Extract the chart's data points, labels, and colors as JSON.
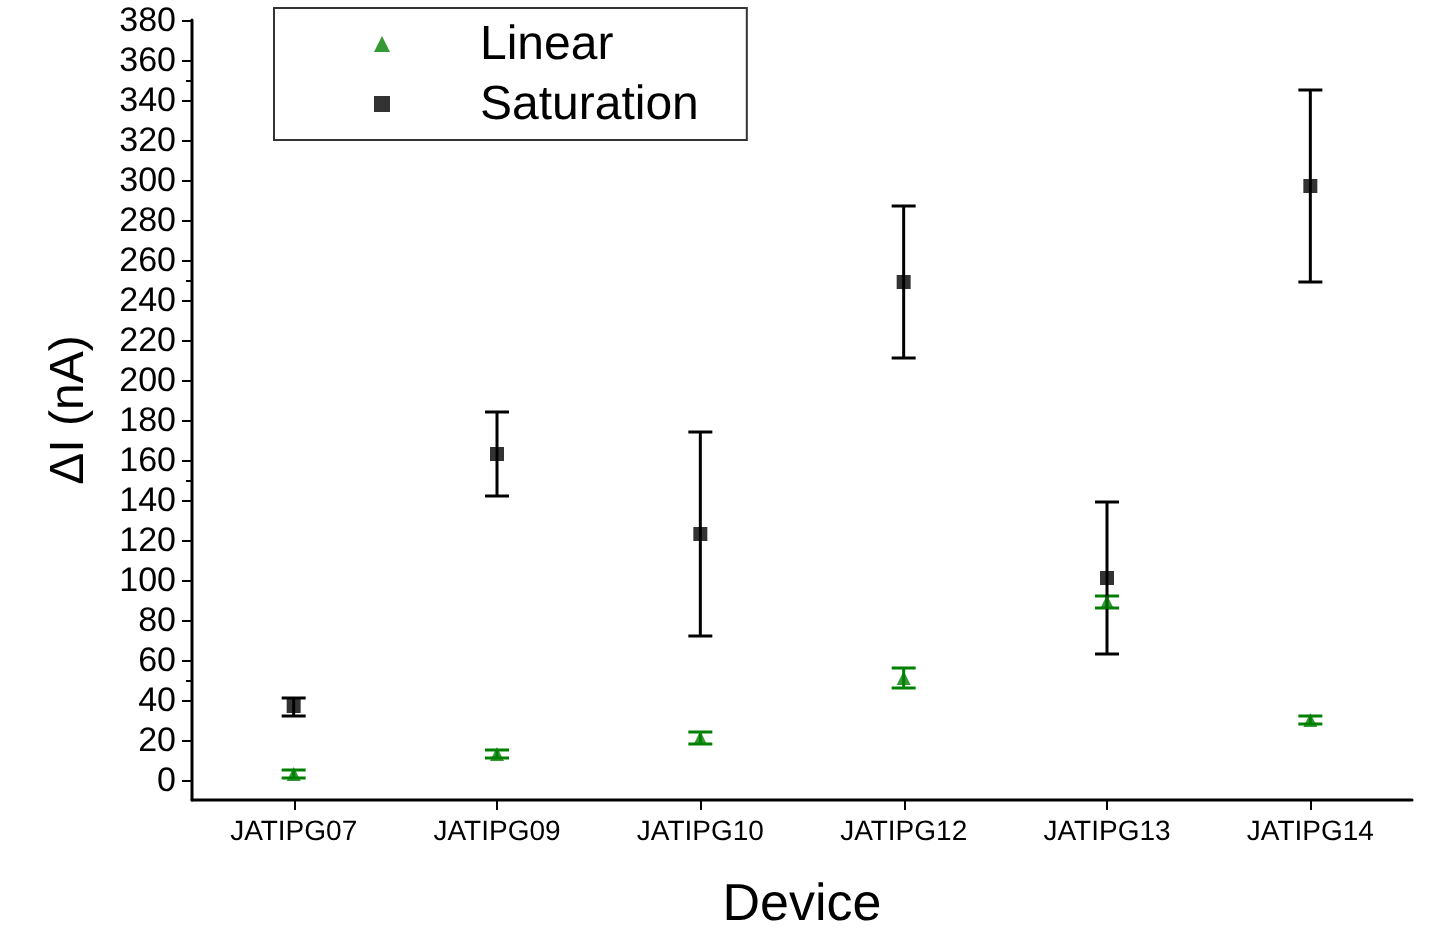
{
  "chart_data": {
    "type": "scatter",
    "xlabel": "Device",
    "ylabel": "ΔI (nA)",
    "categories": [
      "JATIPG07",
      "JATIPG09",
      "JATIPG10",
      "JATIPG12",
      "JATIPG13",
      "JATIPG14"
    ],
    "series": [
      {
        "name": "Linear",
        "color": "#008000",
        "marker": "triangle",
        "values": [
          3,
          13,
          21,
          51,
          89,
          30
        ],
        "errors": [
          2,
          2,
          3,
          5,
          3,
          2
        ]
      },
      {
        "name": "Saturation",
        "color": "#000000",
        "marker": "square",
        "values": [
          37,
          163,
          123,
          249,
          101,
          297
        ],
        "errors": [
          [
            32,
            41
          ],
          [
            142,
            184
          ],
          [
            72,
            174
          ],
          [
            211,
            287
          ],
          [
            63,
            139
          ],
          [
            249,
            345
          ]
        ]
      }
    ],
    "ylim": [
      -10,
      380
    ],
    "yticks": [
      0,
      20,
      40,
      60,
      80,
      100,
      120,
      140,
      160,
      180,
      200,
      220,
      240,
      260,
      280,
      300,
      320,
      340,
      360,
      380
    ],
    "grid": false,
    "legend": "top left"
  }
}
